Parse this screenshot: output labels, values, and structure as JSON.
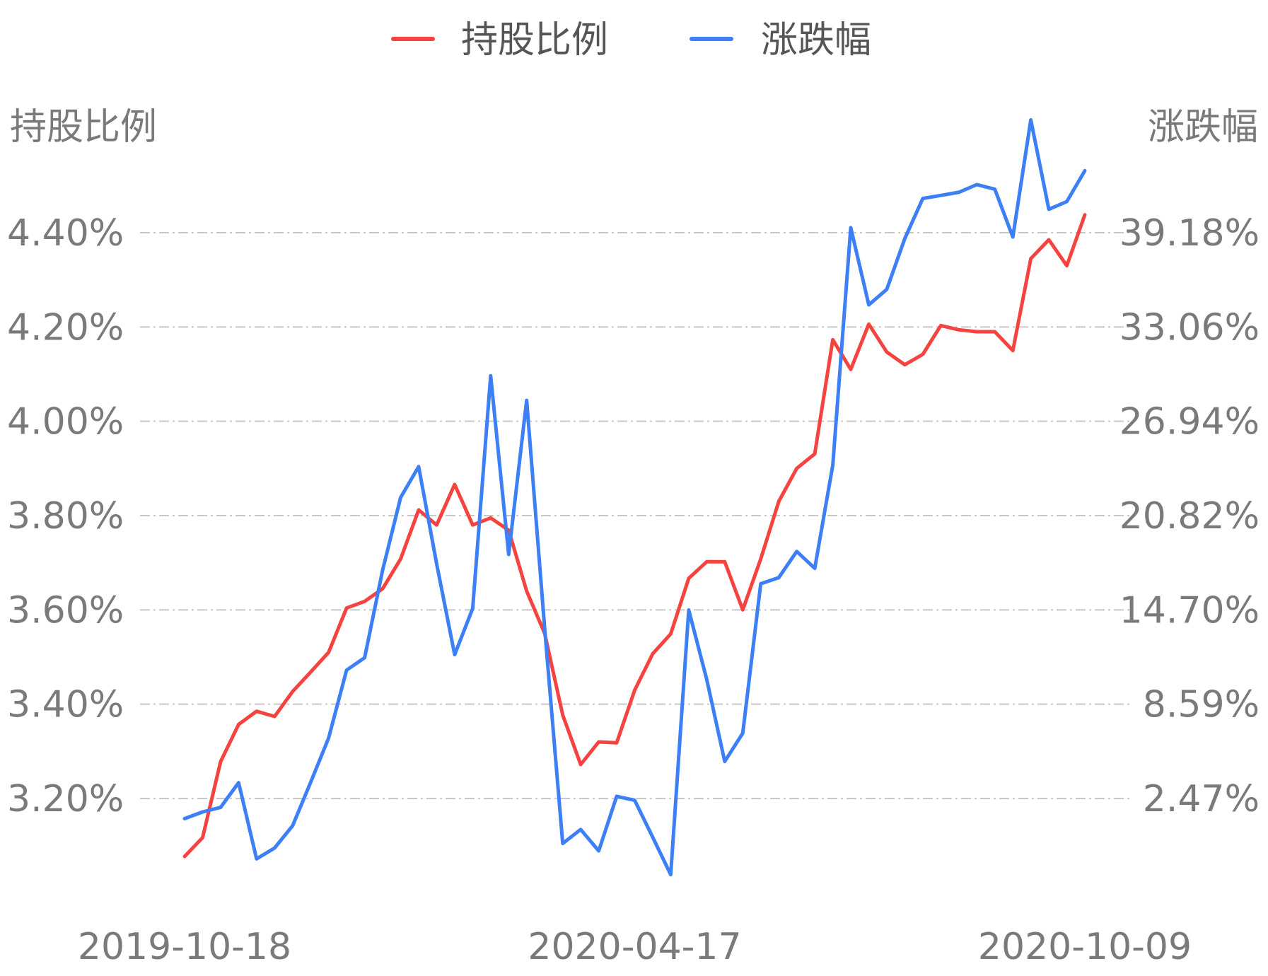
{
  "chart_data": {
    "type": "line",
    "title": "",
    "legend_position": "top-center",
    "grid": true,
    "x_tick_labels": [
      "2019-10-18",
      "2020-04-17",
      "2020-10-09"
    ],
    "x_tick_indices": [
      0,
      25,
      50
    ],
    "y_left": {
      "label": "持股比例",
      "ticks": [
        3.2,
        3.4,
        3.6,
        3.8,
        4.0,
        4.2,
        4.4
      ],
      "tick_labels": [
        "3.20%",
        "3.40%",
        "3.60%",
        "3.80%",
        "4.00%",
        "4.20%",
        "4.40%"
      ],
      "range": [
        3.2,
        4.4
      ]
    },
    "y_right": {
      "label": "涨跌幅",
      "ticks": [
        2.47,
        8.59,
        14.7,
        20.82,
        26.94,
        33.06,
        39.18
      ],
      "tick_labels": [
        "2.47%",
        "8.59%",
        "14.70%",
        "20.82%",
        "26.94%",
        "33.06%",
        "39.18%"
      ],
      "range": [
        2.47,
        39.18
      ]
    },
    "series": [
      {
        "name": "持股比例",
        "axis": "left",
        "color": "#f5433f",
        "values": [
          3.077,
          3.117,
          3.278,
          3.357,
          3.385,
          3.374,
          3.427,
          3.468,
          3.51,
          3.604,
          3.618,
          3.645,
          3.708,
          3.812,
          3.78,
          3.866,
          3.78,
          3.795,
          3.769,
          3.64,
          3.55,
          3.377,
          3.272,
          3.32,
          3.318,
          3.43,
          3.507,
          3.549,
          3.667,
          3.702,
          3.702,
          3.6,
          3.708,
          3.83,
          3.9,
          3.931,
          4.173,
          4.11,
          4.206,
          4.147,
          4.12,
          4.142,
          4.203,
          4.194,
          4.19,
          4.19,
          4.15,
          4.345,
          4.385,
          4.33,
          4.438
        ]
      },
      {
        "name": "涨跌幅",
        "axis": "right",
        "color": "#3d7ff5",
        "values": [
          1.16,
          1.6,
          1.89,
          3.5,
          -1.45,
          -0.74,
          0.71,
          3.51,
          6.4,
          10.8,
          11.6,
          17.3,
          22.0,
          24.0,
          17.7,
          11.8,
          14.8,
          29.9,
          18.3,
          28.3,
          13.5,
          -0.45,
          0.46,
          -0.93,
          2.61,
          2.35,
          -0.05,
          -2.47,
          14.7,
          10.2,
          4.87,
          6.71,
          16.4,
          16.8,
          18.5,
          17.4,
          24.1,
          39.5,
          34.5,
          35.5,
          38.8,
          41.4,
          41.6,
          41.8,
          42.3,
          42.0,
          38.9,
          46.5,
          40.7,
          41.2,
          43.2
        ]
      }
    ]
  }
}
